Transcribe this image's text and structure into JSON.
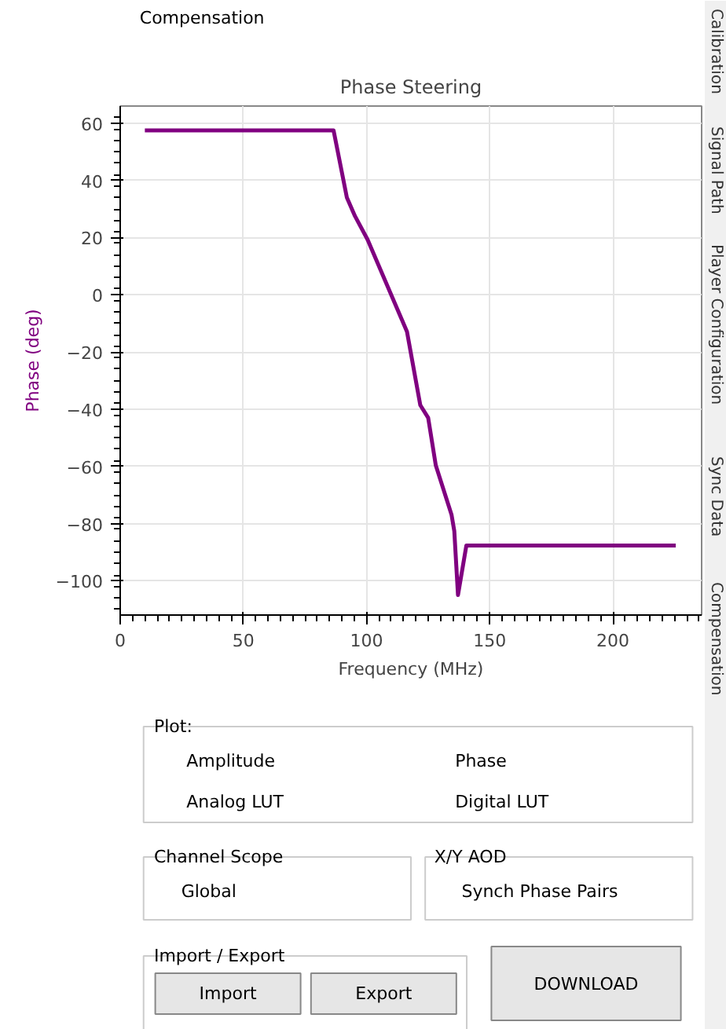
{
  "chart_data": [
    {
      "type": "line",
      "title": "Phase Steering",
      "xlabel": "Frequency (MHz)",
      "ylabel": "Phase (deg)",
      "x": [
        10,
        86,
        86.6,
        92,
        95.3,
        100.4,
        116.4,
        121.8,
        125,
        128.1,
        134.5,
        135.6,
        137.1,
        140.5,
        225.5
      ],
      "series": [
        {
          "color": "#800080",
          "values": [
            57.5,
            57.5,
            57.5,
            34,
            27.5,
            19.3,
            -12.9,
            -38.6,
            -43,
            -59.7,
            -77,
            -82.6,
            -105,
            -87.7,
            -87.7
          ]
        }
      ],
      "xlim": [
        0,
        236
      ],
      "ylim": [
        -112,
        66
      ],
      "xticks": [
        0,
        50,
        100,
        150,
        200
      ],
      "yticks": [
        -100,
        -80,
        -60,
        -40,
        -20,
        0,
        20,
        40,
        60
      ],
      "grid": true,
      "line_style": "solid",
      "marker": "none"
    },
    {
      "type": "other",
      "annotations": [
        "Compensation",
        "Plot:",
        "Amplitude",
        "Phase",
        "Analog LUT",
        "Digital LUT",
        "Channel Scope",
        "Global",
        "X/Y AOD",
        "Synch Phase Pairs",
        "Import / Export",
        "Import",
        "Export",
        "DOWNLOAD",
        "Calibration",
        "Signal Path",
        "Player Configuration",
        "Sync Data",
        "Compensation"
      ]
    }
  ]
}
